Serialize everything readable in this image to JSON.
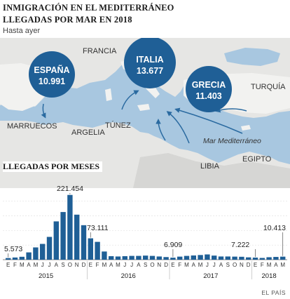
{
  "header": {
    "title_line1": "INMIGRACIÓN EN EL MEDITERRÁNEO",
    "title_line2": "LLEGADAS POR MAR EN 2018",
    "subtitle": "Hasta ayer"
  },
  "map": {
    "countries": {
      "francia": "FRANCIA",
      "turquia": "TURQUÍA",
      "marruecos": "MARRUECOS",
      "argelia": "ARGELIA",
      "tunez": "TÚNEZ",
      "libia": "LIBIA",
      "egipto": "EGIPTO"
    },
    "sea": "Mar Mediterráneo",
    "bubbles": [
      {
        "name": "ESPAÑA",
        "value": "10.991"
      },
      {
        "name": "ITALIA",
        "value": "13.677"
      },
      {
        "name": "GRECIA",
        "value": "11.403"
      }
    ],
    "colors": {
      "bubble": "#1f5f96",
      "sea": "#a8c7e0",
      "land": "#e6e6e4",
      "arrow": "#2a6aa0"
    }
  },
  "chart_title": "LLEGADAS POR MESES",
  "source": "EL PAÍS",
  "chart_data": {
    "type": "bar",
    "color": "#1f5f96",
    "ylim": [
      0,
      240000
    ],
    "categories": [
      "E",
      "F",
      "M",
      "A",
      "M",
      "J",
      "J",
      "A",
      "S",
      "O",
      "N",
      "D",
      "E",
      "F",
      "M",
      "A",
      "M",
      "J",
      "J",
      "A",
      "S",
      "O",
      "N",
      "D",
      "E",
      "F",
      "M",
      "A",
      "M",
      "J",
      "J",
      "A",
      "S",
      "O",
      "N",
      "D",
      "E",
      "F",
      "M",
      "A",
      "M"
    ],
    "years": [
      {
        "label": "2015",
        "start": 0,
        "end": 11
      },
      {
        "label": "2016",
        "start": 12,
        "end": 23
      },
      {
        "label": "2017",
        "start": 24,
        "end": 35
      },
      {
        "label": "2018",
        "start": 36,
        "end": 40
      }
    ],
    "values": [
      5573,
      7500,
      10000,
      25000,
      42000,
      54000,
      78000,
      131000,
      163000,
      221454,
      154000,
      118000,
      73111,
      61000,
      28000,
      12000,
      11000,
      12000,
      13000,
      13000,
      14000,
      13000,
      11000,
      9000,
      6909,
      10500,
      13000,
      14500,
      16000,
      18000,
      14000,
      11000,
      11000,
      10500,
      10000,
      8000,
      7222,
      6000,
      8500,
      9500,
      10413
    ],
    "data_labels": [
      {
        "index": 0,
        "text": "5.573"
      },
      {
        "index": 9,
        "text": "221.454"
      },
      {
        "index": 12,
        "text": "73.111"
      },
      {
        "index": 24,
        "text": "6.909"
      },
      {
        "index": 36,
        "text": "7.222"
      },
      {
        "index": 40,
        "text": "10.413"
      }
    ]
  }
}
